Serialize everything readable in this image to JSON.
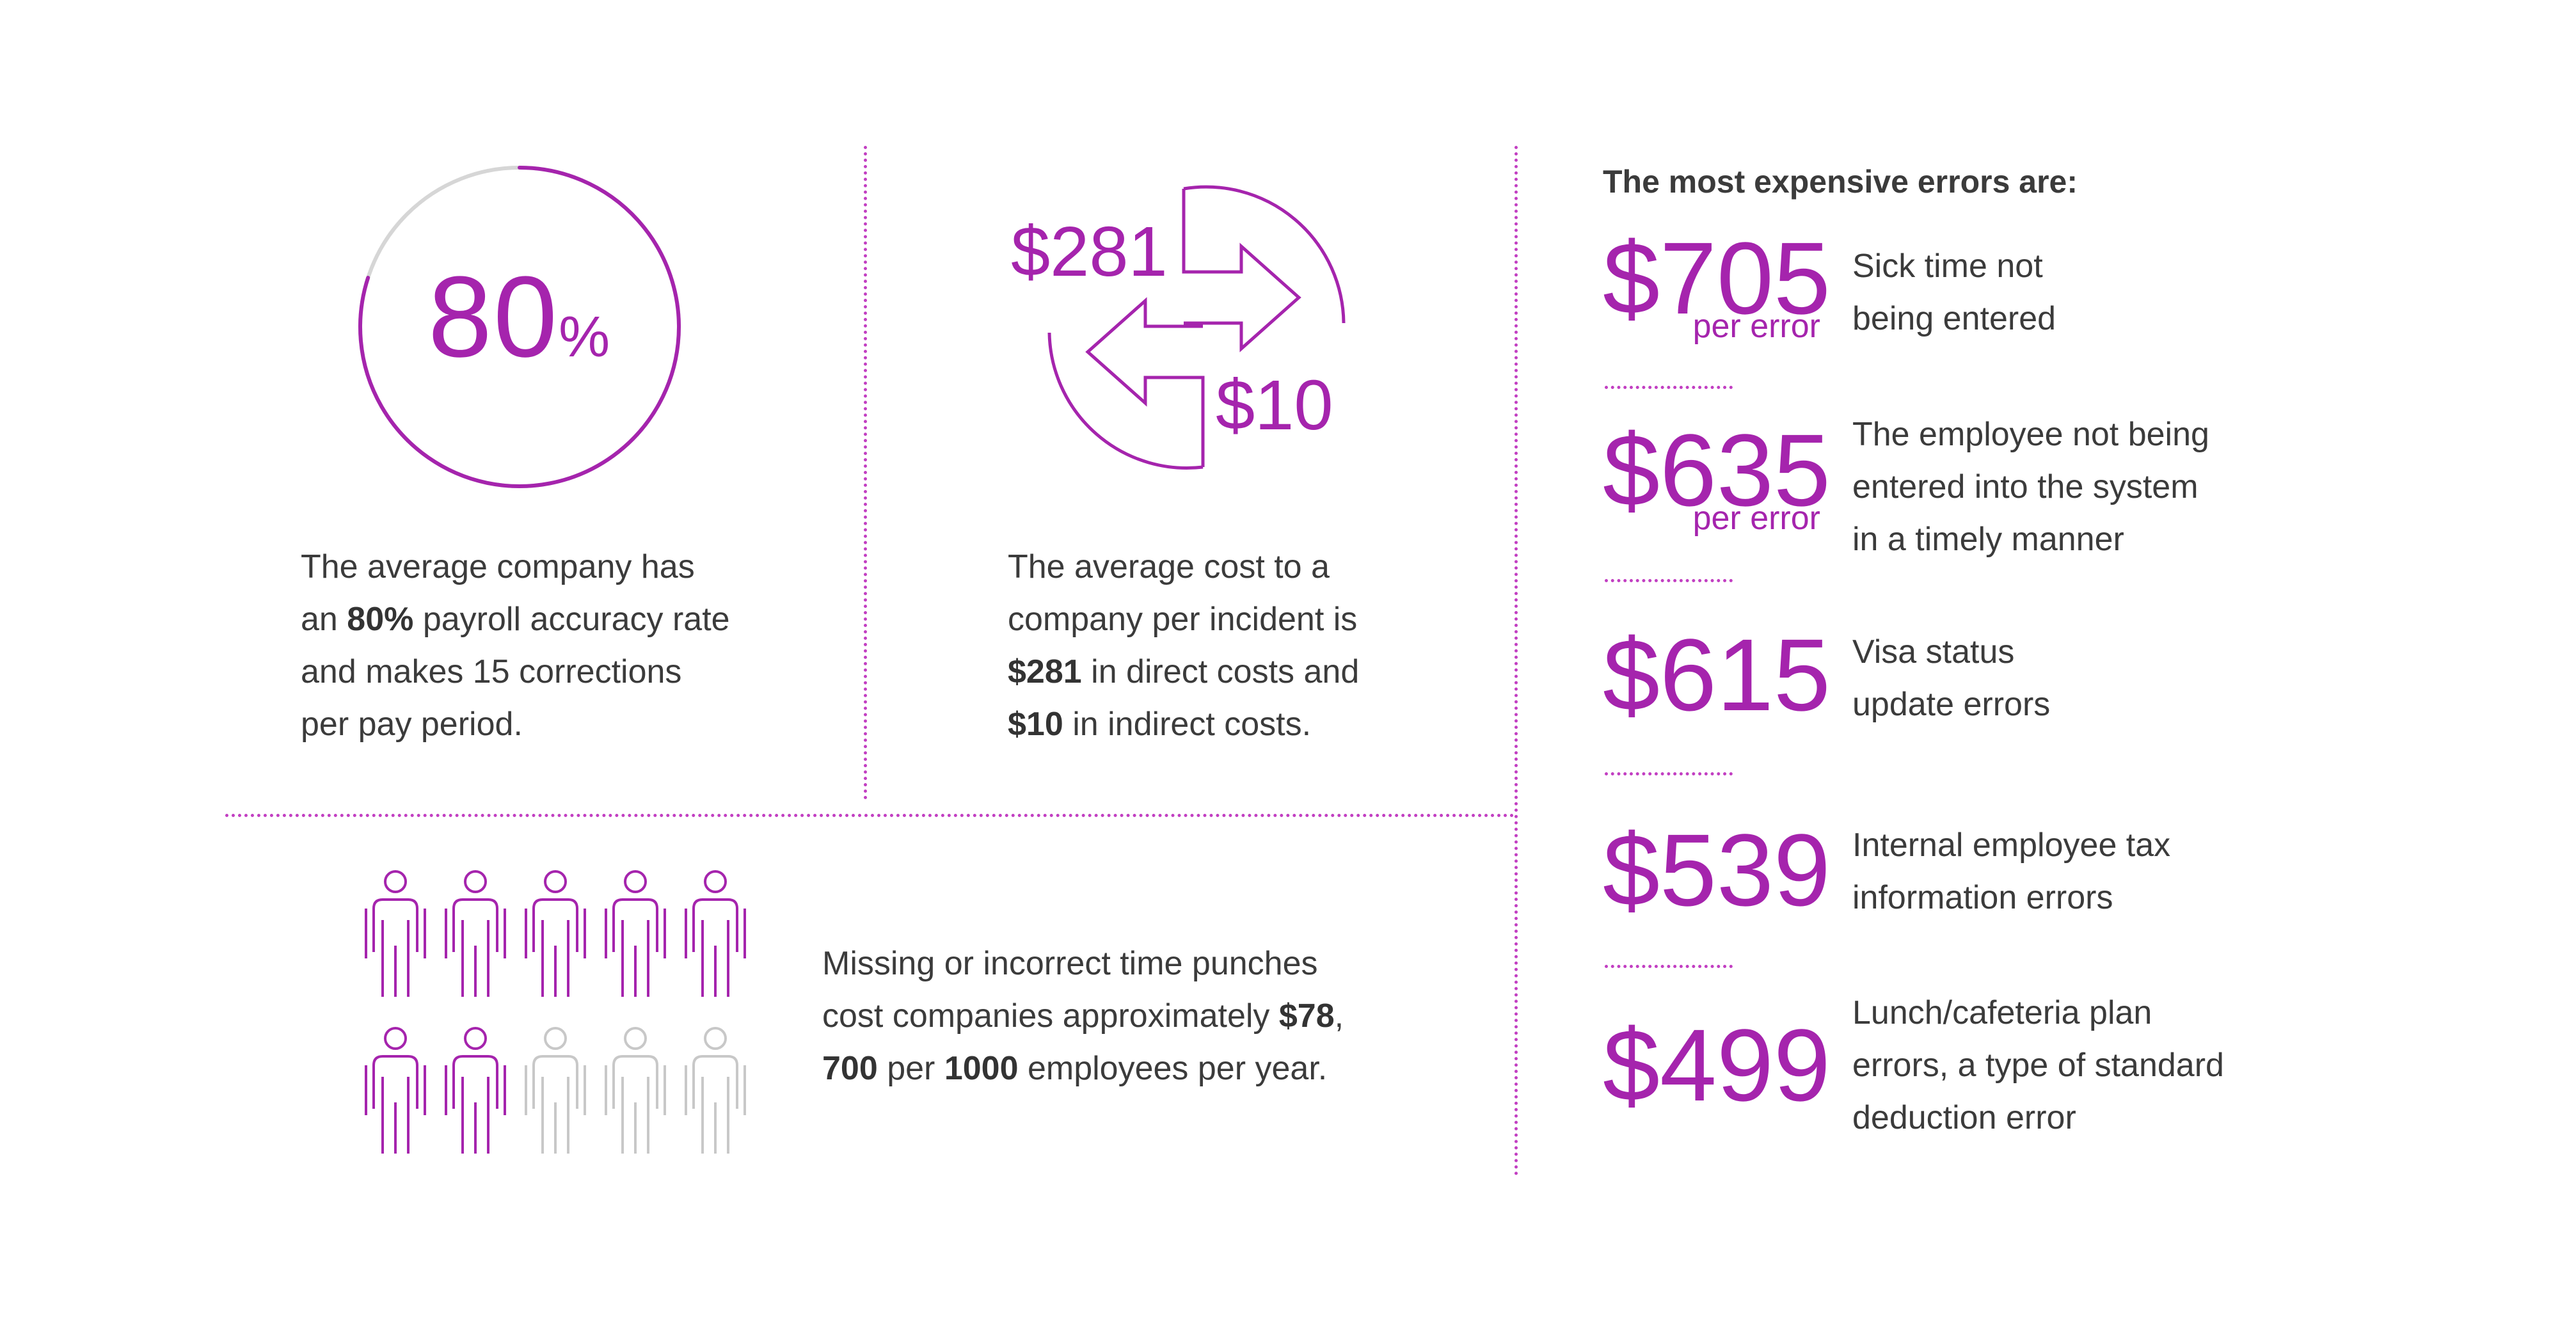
{
  "stat_accuracy": {
    "ring_percent": 80,
    "big_value": "80",
    "big_unit": "%",
    "text_1": "The average company has",
    "text_2a": "an ",
    "text_2b": "80%",
    "text_2c": " payroll accuracy rate",
    "text_3": "and makes 15 corrections",
    "text_4": "per pay period."
  },
  "stat_cost": {
    "direct_label": "$281",
    "indirect_label": "$10",
    "text_1": "The average cost to a",
    "text_2": "company per incident is",
    "text_3a": "$281",
    "text_3b": " in direct costs and",
    "text_4a": "$10",
    "text_4b": " in indirect costs."
  },
  "stat_punches": {
    "people_total": 10,
    "people_highlighted": 7,
    "text_1": "Missing or incorrect time punches",
    "text_2a": "cost companies approximately ",
    "text_2b": "$78",
    "text_2c": ",",
    "text_3a": "700",
    "text_3b": " per ",
    "text_3c": "1000",
    "text_3d": " employees per year."
  },
  "errors": {
    "heading": "The most expensive errors are:",
    "items": [
      {
        "price": "$705",
        "per": "per error",
        "desc_1": "Sick time not",
        "desc_2": "being entered",
        "desc_3": ""
      },
      {
        "price": "$635",
        "per": "per error",
        "desc_1": "The employee not being",
        "desc_2": "entered into the system",
        "desc_3": "in a timely manner"
      },
      {
        "price": "$615",
        "per": "",
        "desc_1": "Visa status",
        "desc_2": "update errors",
        "desc_3": ""
      },
      {
        "price": "$539",
        "per": "",
        "desc_1": "Internal employee tax",
        "desc_2": "information errors",
        "desc_3": ""
      },
      {
        "price": "$499",
        "per": "",
        "desc_1": "Lunch/cafeteria plan",
        "desc_2": "errors, a type of standard",
        "desc_3": "deduction error"
      }
    ]
  },
  "colors": {
    "accent": "#a524ad",
    "text": "#3b3b3b",
    "muted": "#c8c8c8",
    "divider": "#c23fc2"
  }
}
